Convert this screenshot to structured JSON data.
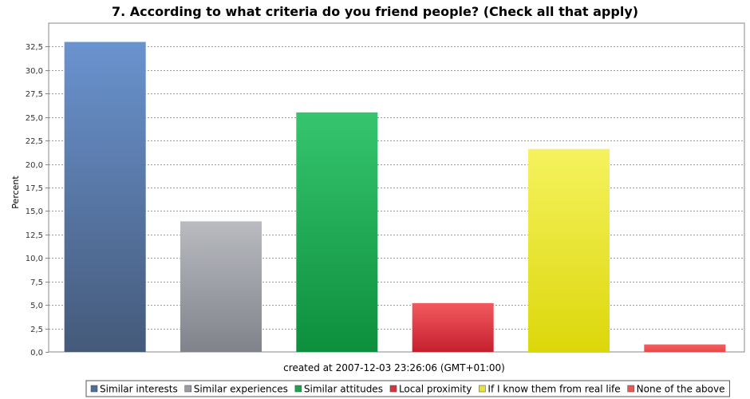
{
  "chart_data": {
    "type": "bar",
    "title": "7. According to what criteria do you friend people? (Check all that apply)",
    "ylabel": "Percent",
    "xlabel": "created at 2007-12-03 23:26:06 (GMT+01:00)",
    "ylim": [
      0,
      35
    ],
    "yticks": [
      "0,0",
      "2,5",
      "5,0",
      "7,5",
      "10,0",
      "12,5",
      "15,0",
      "17,5",
      "20,0",
      "22,5",
      "25,0",
      "27,5",
      "30,0",
      "32,5"
    ],
    "ytick_values": [
      0,
      2.5,
      5,
      7.5,
      10,
      12.5,
      15,
      17.5,
      20,
      22.5,
      25,
      27.5,
      30,
      32.5
    ],
    "grid": true,
    "legend_position": "bottom",
    "series": [
      {
        "name": "Similar interests",
        "value": 33.0,
        "color_top": "#6a93cf",
        "color_bottom": "#455a7a",
        "legend_color": "#4f6d9c"
      },
      {
        "name": "Similar experiences",
        "value": 13.9,
        "color_top": "#b9bbc0",
        "color_bottom": "#80838b",
        "legend_color": "#9a9ca2"
      },
      {
        "name": "Similar attitudes",
        "value": 25.5,
        "color_top": "#36c56e",
        "color_bottom": "#0d8f3d",
        "legend_color": "#1fa152"
      },
      {
        "name": "Local proximity",
        "value": 5.2,
        "color_top": "#f25a5f",
        "color_bottom": "#c51f2e",
        "legend_color": "#d9333b"
      },
      {
        "name": "If I know them from real life",
        "value": 21.6,
        "color_top": "#f5f25f",
        "color_bottom": "#dcd70a",
        "legend_color": "#e8e23a"
      },
      {
        "name": "None of the above",
        "value": 0.8,
        "color_top": "#f26060",
        "color_bottom": "#e84848",
        "legend_color": "#ee5555"
      }
    ]
  }
}
